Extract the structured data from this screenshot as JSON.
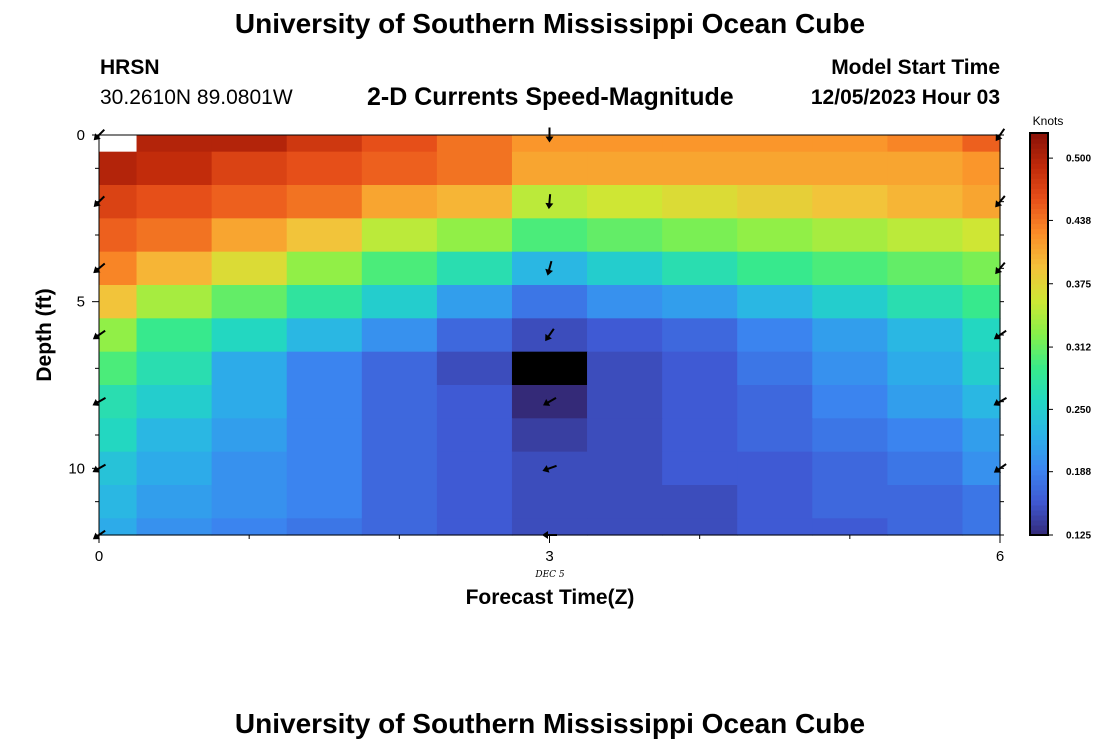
{
  "header": {
    "title": "University of Southern Mississippi Ocean Cube",
    "station": "HRSN",
    "coordinates": "30.2610N  89.0801W",
    "subtitle": "2-D Currents Speed-Magnitude",
    "model_label": "Model Start Time",
    "model_time": "12/05/2023 Hour 03"
  },
  "footer": {
    "title": "University of Southern Mississippi Ocean Cube"
  },
  "chart_data": {
    "type": "heatmap",
    "xlabel": "Forecast Time(Z)",
    "ylabel": "Depth (ft)",
    "date_label": "DEC 5",
    "x_columns": [
      0,
      0.5,
      1,
      1.5,
      2,
      2.5,
      3,
      3.5,
      4,
      4.5,
      5,
      5.5,
      6
    ],
    "xlim": [
      0,
      6
    ],
    "x_ticks": [
      0,
      3,
      6
    ],
    "y_rows": [
      0,
      1,
      2,
      3,
      4,
      5,
      6,
      7,
      8,
      9,
      10,
      11,
      12
    ],
    "ylim": [
      0,
      12
    ],
    "y_ticks": [
      0,
      5,
      10
    ],
    "colorbar": {
      "label": "Knots",
      "range": [
        0.125,
        0.525
      ],
      "ticks": [
        "0.500",
        "0.438",
        "0.375",
        "0.312",
        "0.250",
        "0.188",
        "0.125"
      ]
    },
    "speed_knots": [
      [
        null,
        0.5,
        0.5,
        0.48,
        0.46,
        0.44,
        0.42,
        0.42,
        0.42,
        0.42,
        0.42,
        0.43,
        0.45
      ],
      [
        0.5,
        0.49,
        0.47,
        0.46,
        0.45,
        0.44,
        0.41,
        0.41,
        0.41,
        0.41,
        0.41,
        0.41,
        0.42
      ],
      [
        0.47,
        0.46,
        0.45,
        0.44,
        0.41,
        0.4,
        0.35,
        0.36,
        0.37,
        0.38,
        0.39,
        0.4,
        0.41
      ],
      [
        0.45,
        0.44,
        0.41,
        0.39,
        0.35,
        0.33,
        0.3,
        0.31,
        0.32,
        0.33,
        0.34,
        0.35,
        0.36
      ],
      [
        0.43,
        0.4,
        0.37,
        0.33,
        0.3,
        0.27,
        0.23,
        0.25,
        0.27,
        0.29,
        0.3,
        0.31,
        0.32
      ],
      [
        0.39,
        0.34,
        0.31,
        0.28,
        0.25,
        0.21,
        0.18,
        0.2,
        0.21,
        0.23,
        0.25,
        0.27,
        0.29
      ],
      [
        0.33,
        0.29,
        0.26,
        0.23,
        0.2,
        0.17,
        0.15,
        0.16,
        0.17,
        0.19,
        0.21,
        0.23,
        0.26
      ],
      [
        0.3,
        0.27,
        0.22,
        0.19,
        0.17,
        0.15,
        0.06,
        0.15,
        0.16,
        0.18,
        0.2,
        0.22,
        0.25
      ],
      [
        0.27,
        0.25,
        0.22,
        0.19,
        0.17,
        0.16,
        0.125,
        0.15,
        0.16,
        0.17,
        0.19,
        0.21,
        0.23
      ],
      [
        0.26,
        0.23,
        0.21,
        0.19,
        0.17,
        0.16,
        0.14,
        0.15,
        0.16,
        0.17,
        0.18,
        0.19,
        0.21
      ],
      [
        0.24,
        0.22,
        0.2,
        0.19,
        0.17,
        0.16,
        0.15,
        0.15,
        0.16,
        0.16,
        0.17,
        0.18,
        0.2
      ],
      [
        0.23,
        0.21,
        0.2,
        0.19,
        0.17,
        0.16,
        0.15,
        0.15,
        0.15,
        0.16,
        0.17,
        0.17,
        0.18
      ],
      [
        0.22,
        0.2,
        0.19,
        0.18,
        0.17,
        0.16,
        0.15,
        0.15,
        0.15,
        0.16,
        0.16,
        0.17,
        0.18
      ]
    ],
    "arrows": [
      {
        "t": 0,
        "depth": 0,
        "dir_deg": 225
      },
      {
        "t": 3,
        "depth": 0,
        "dir_deg": 180
      },
      {
        "t": 6,
        "depth": 0,
        "dir_deg": 215
      },
      {
        "t": 0,
        "depth": 2,
        "dir_deg": 225
      },
      {
        "t": 3,
        "depth": 2,
        "dir_deg": 185
      },
      {
        "t": 6,
        "depth": 2,
        "dir_deg": 220
      },
      {
        "t": 0,
        "depth": 4,
        "dir_deg": 230
      },
      {
        "t": 3,
        "depth": 4,
        "dir_deg": 195
      },
      {
        "t": 6,
        "depth": 4,
        "dir_deg": 220
      },
      {
        "t": 0,
        "depth": 6,
        "dir_deg": 235
      },
      {
        "t": 3,
        "depth": 6,
        "dir_deg": 215
      },
      {
        "t": 6,
        "depth": 6,
        "dir_deg": 235
      },
      {
        "t": 0,
        "depth": 8,
        "dir_deg": 240
      },
      {
        "t": 3,
        "depth": 8,
        "dir_deg": 240
      },
      {
        "t": 6,
        "depth": 8,
        "dir_deg": 240
      },
      {
        "t": 0,
        "depth": 10,
        "dir_deg": 240
      },
      {
        "t": 3,
        "depth": 10,
        "dir_deg": 250
      },
      {
        "t": 6,
        "depth": 10,
        "dir_deg": 235
      },
      {
        "t": 0,
        "depth": 12,
        "dir_deg": 235
      },
      {
        "t": 3,
        "depth": 12,
        "dir_deg": 270
      }
    ],
    "palette": [
      "#342a78",
      "#3f58d2",
      "#3b86f0",
      "#2bb2e8",
      "#22d6c4",
      "#38ea8a",
      "#86f04a",
      "#cde834",
      "#f4c23a",
      "#fb8e28",
      "#e8511a",
      "#c02a0a",
      "#8a1208"
    ],
    "missing_color": "#ffffff",
    "black_cell_color": "#000000"
  }
}
